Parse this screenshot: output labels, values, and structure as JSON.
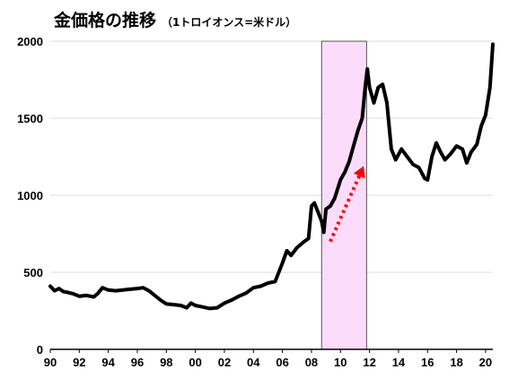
{
  "chart_data": {
    "type": "line",
    "title": "金価格の推移",
    "subtitle": "（1トロイオンス=米ドル）",
    "xlabel": "",
    "ylabel": "",
    "xlim": [
      1990,
      2020.5
    ],
    "ylim": [
      0,
      2000
    ],
    "yticks": [
      0,
      500,
      1000,
      1500,
      2000
    ],
    "xtick_labels": [
      "90",
      "92",
      "94",
      "96",
      "98",
      "00",
      "02",
      "04",
      "06",
      "08",
      "10",
      "12",
      "14",
      "16",
      "18",
      "20"
    ],
    "grid": true,
    "line_color": "#000000",
    "highlight": {
      "x_range": [
        2008.7,
        2011.8
      ],
      "fill": "#fbdcfb",
      "stroke": "#555555"
    },
    "arrow": {
      "from": [
        2009.3,
        700
      ],
      "to": [
        2011.6,
        1190
      ],
      "color": "#ff0000",
      "style": "dotted"
    },
    "series": [
      {
        "x": [
          1990.0,
          1990.3,
          1990.6,
          1990.9,
          1991.2,
          1991.6,
          1992.0,
          1992.5,
          1993.0,
          1993.3,
          1993.6,
          1994.0,
          1994.5,
          1995.0,
          1995.5,
          1996.0,
          1996.4,
          1996.8,
          1997.2,
          1997.6,
          1998.0,
          1998.5,
          1999.0,
          1999.4,
          1999.7,
          2000.0,
          2000.5,
          2001.0,
          2001.5,
          2002.0,
          2002.5,
          2003.0,
          2003.5,
          2004.0,
          2004.5,
          2005.0,
          2005.5,
          2006.0,
          2006.3,
          2006.6,
          2007.0,
          2007.5,
          2007.8,
          2008.0,
          2008.2,
          2008.5,
          2008.7,
          2008.85,
          2009.0,
          2009.3,
          2009.6,
          2010.0,
          2010.3,
          2010.6,
          2010.9,
          2011.2,
          2011.5,
          2011.7,
          2011.85,
          2012.0,
          2012.3,
          2012.6,
          2012.9,
          2013.2,
          2013.5,
          2013.8,
          2014.2,
          2014.6,
          2015.0,
          2015.4,
          2015.8,
          2016.0,
          2016.3,
          2016.6,
          2016.9,
          2017.2,
          2017.6,
          2018.0,
          2018.4,
          2018.7,
          2019.0,
          2019.4,
          2019.7,
          2020.0,
          2020.3,
          2020.5
        ],
        "y": [
          410,
          380,
          395,
          375,
          370,
          360,
          345,
          350,
          340,
          365,
          400,
          385,
          380,
          385,
          390,
          395,
          400,
          380,
          350,
          320,
          295,
          290,
          285,
          270,
          300,
          285,
          275,
          265,
          270,
          300,
          320,
          345,
          365,
          400,
          410,
          430,
          440,
          560,
          640,
          610,
          660,
          700,
          720,
          930,
          950,
          880,
          830,
          760,
          910,
          930,
          980,
          1100,
          1150,
          1220,
          1320,
          1420,
          1500,
          1700,
          1820,
          1700,
          1600,
          1700,
          1720,
          1600,
          1300,
          1230,
          1300,
          1250,
          1200,
          1180,
          1110,
          1100,
          1250,
          1340,
          1280,
          1230,
          1270,
          1320,
          1300,
          1210,
          1280,
          1330,
          1450,
          1520,
          1700,
          1980
        ]
      }
    ]
  }
}
